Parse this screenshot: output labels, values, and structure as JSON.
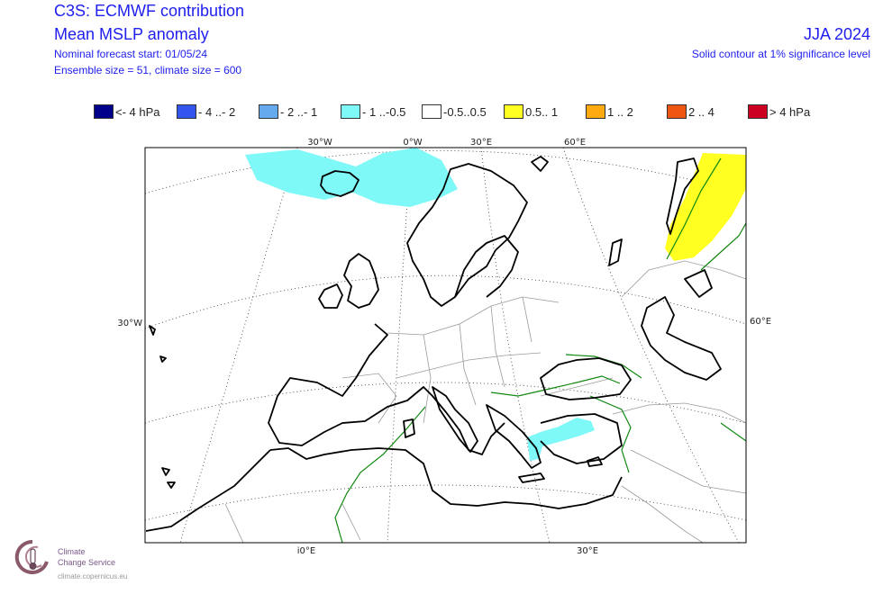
{
  "header": {
    "line1": "C3S: ECMWF contribution",
    "line2": "Mean MSLP anomaly",
    "line3": "Nominal forecast start: 01/05/24",
    "line4": "Ensemble size = 51, climate size = 600",
    "season": "JJA 2024",
    "note": "Solid contour at 1% significance level"
  },
  "legend": [
    {
      "label": "<- 4 hPa",
      "color": "#00008b"
    },
    {
      "label": "- 4 ..- 2",
      "color": "#3355ee"
    },
    {
      "label": "- 2 ..- 1",
      "color": "#66aaee"
    },
    {
      "label": "- 1 ..-0.5",
      "color": "#7ff8f8"
    },
    {
      "label": "-0.5..0.5",
      "color": "#ffffff"
    },
    {
      "label": "0.5.. 1",
      "color": "#ffff22"
    },
    {
      "label": "1 .. 2",
      "color": "#ffaa11"
    },
    {
      "label": "2 .. 4",
      "color": "#ee5511"
    },
    {
      "label": "> 4 hPa",
      "color": "#cc0022"
    }
  ],
  "axes": {
    "top": [
      "30°W",
      "0°W",
      "30°E",
      "60°E"
    ],
    "left": "30°W",
    "right": "60°E",
    "bottom": [
      "ⅰ0°E",
      "30°E"
    ]
  },
  "logo": {
    "line1": "Climate",
    "line2": "Change Service",
    "url": "climate.copernicus.eu"
  }
}
